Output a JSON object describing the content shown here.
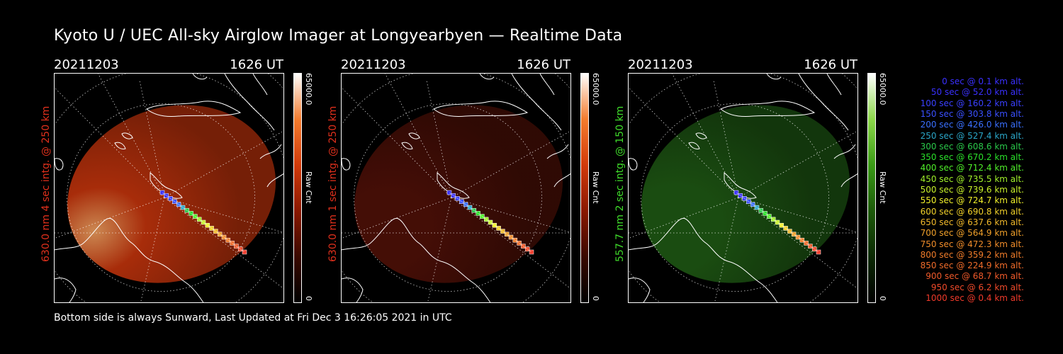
{
  "title": "Kyoto U / UEC All-sky Airglow Imager at Longyearbyen — Realtime Data",
  "footer": "Bottom side is always Sunward, Last Updated at Fri Dec  3 16:26:05 2021 in UTC",
  "panels": [
    {
      "date": "20211203",
      "time": "1626 UT",
      "side_label": "630.0 nm 4 sec intg. @ 250 km",
      "label_color": "#e0301c",
      "colorbar_max": "65000.0",
      "colorbar_min": "0",
      "colorbar_title": "Raw Cnt",
      "colormap": [
        "#000000",
        "#3a0900",
        "#8a1800",
        "#d23a0a",
        "#f47c2e",
        "#ffffff"
      ],
      "emission_color": "#c5340c",
      "emission_opacity": 0.55
    },
    {
      "date": "20211203",
      "time": "1626 UT",
      "side_label": "630.0 nm 1 sec intg. @ 250 km",
      "label_color": "#e0301c",
      "colorbar_max": "65000.0",
      "colorbar_min": "0",
      "colorbar_title": "Raw Cnt",
      "colormap": [
        "#000000",
        "#3a0900",
        "#8a1800",
        "#d23a0a",
        "#f47c2e",
        "#ffffff"
      ],
      "emission_color": "#5a1208",
      "emission_opacity": 0.45
    },
    {
      "date": "20211203",
      "time": "1626 UT",
      "side_label": "557.7 nm 2 sec intg. @ 150 km",
      "label_color": "#3fdc2a",
      "colorbar_max": "65000.0",
      "colorbar_min": "0",
      "colorbar_title": "Raw Cnt",
      "colormap": [
        "#000000",
        "#0c2a04",
        "#1d5a0a",
        "#3a9a16",
        "#8cd84a",
        "#ffffff"
      ],
      "emission_color": "#1f5a14",
      "emission_opacity": 0.55
    }
  ],
  "legend": [
    {
      "label": "0 sec @   0.1 km alt.",
      "color": "#3a30ff"
    },
    {
      "label": "50 sec @  52.0 km alt.",
      "color": "#3a30ff"
    },
    {
      "label": "100 sec @ 160.2 km alt.",
      "color": "#3a40ff"
    },
    {
      "label": "150 sec @ 303.8 km alt.",
      "color": "#3a50ff"
    },
    {
      "label": "200 sec @ 426.0 km alt.",
      "color": "#3a70ff"
    },
    {
      "label": "250 sec @ 527.4 km alt.",
      "color": "#2aa6c8"
    },
    {
      "label": "300 sec @ 608.6 km alt.",
      "color": "#2ac84a"
    },
    {
      "label": "350 sec @ 670.2 km alt.",
      "color": "#2ae02a"
    },
    {
      "label": "400 sec @ 712.4 km alt.",
      "color": "#50f02a"
    },
    {
      "label": "450 sec @ 735.5 km alt.",
      "color": "#a0f02a"
    },
    {
      "label": "500 sec @ 739.6 km alt.",
      "color": "#c8f02a"
    },
    {
      "label": "550 sec @ 724.7 km alt.",
      "color": "#f0f02a"
    },
    {
      "label": "600 sec @ 690.8 km alt.",
      "color": "#f0d02a"
    },
    {
      "label": "650 sec @ 637.6 km alt.",
      "color": "#f0b82a"
    },
    {
      "label": "700 sec @ 564.9 km alt.",
      "color": "#f0a02a"
    },
    {
      "label": "750 sec @ 472.3 km alt.",
      "color": "#f08c2a"
    },
    {
      "label": "800 sec @ 359.2 km alt.",
      "color": "#f07c2a"
    },
    {
      "label": "850 sec @ 224.9 km alt.",
      "color": "#f06c2a"
    },
    {
      "label": "900 sec @  68.7 km alt.",
      "color": "#f05a2a"
    },
    {
      "label": "950 sec @   6.2 km alt.",
      "color": "#f04a2a"
    },
    {
      "label": "1000 sec @   0.4 km alt.",
      "color": "#f03a2a"
    }
  ]
}
